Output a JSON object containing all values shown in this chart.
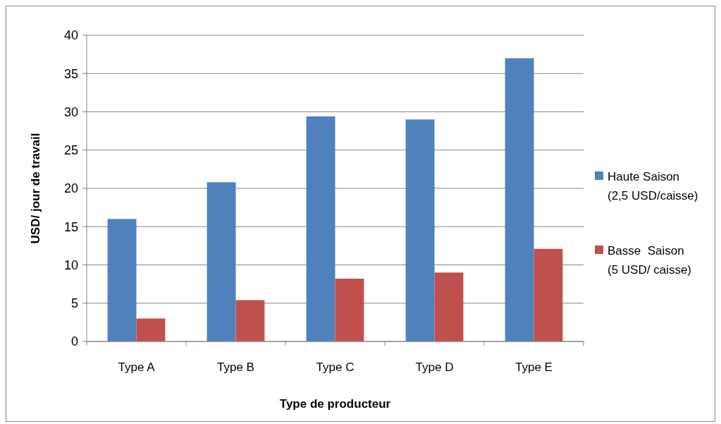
{
  "chart_data": {
    "type": "bar",
    "xlabel": "Type de producteur",
    "ylabel": "USD/ jour de travail",
    "categories": [
      "Type A",
      "Type B",
      "Type C",
      "Type D",
      "Type E"
    ],
    "series": [
      {
        "name": "Haute Saison (2,5 USD/caisse)",
        "color": "#4f81bd",
        "values": [
          16,
          20.8,
          29.4,
          29,
          37
        ]
      },
      {
        "name": "Basse  Saison (5 USD/ caisse)",
        "color": "#c0504d",
        "values": [
          3,
          5.4,
          8.2,
          9,
          12.1
        ]
      }
    ],
    "ylim": [
      0,
      40
    ],
    "yticks": [
      0,
      5,
      10,
      15,
      20,
      25,
      30,
      35,
      40
    ],
    "grid": "y",
    "legend": "right"
  }
}
